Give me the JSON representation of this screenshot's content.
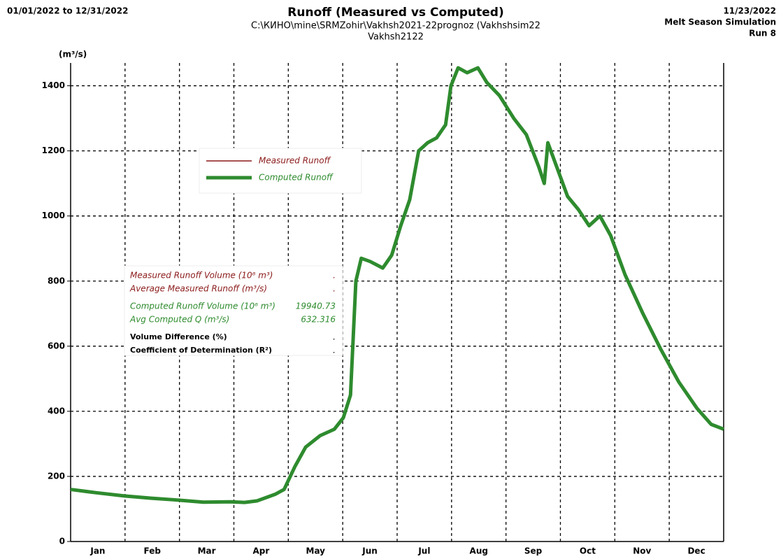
{
  "chart_data": {
    "type": "line",
    "title": "Runoff (Measured vs Computed)",
    "subtitle": "C:\\КИНО\\mine\\SRMZohir\\Vakhsh2021-22prognoz (Vakhshsim22",
    "subtitle2": "Vakhsh2122",
    "date_range": "01/01/2022 to 12/31/2022",
    "run_date": "11/23/2022",
    "simulation": "Melt Season Simulation",
    "run": "Run 8",
    "y_label": "(m³/s)",
    "categories": [
      "Jan",
      "Feb",
      "Mar",
      "Apr",
      "May",
      "Jun",
      "Jul",
      "Aug",
      "Sep",
      "Oct",
      "Nov",
      "Dec"
    ],
    "xlim": [
      1,
      365
    ],
    "ylim": [
      0,
      1470
    ],
    "yticks": [
      0,
      200,
      400,
      600,
      800,
      1000,
      1200,
      1400
    ],
    "grid": true,
    "series": [
      {
        "name": "Measured Runoff",
        "color": "#8b1a1a"
      },
      {
        "name": "Computed Runoff",
        "color": "#2e8b2e",
        "x": [
          1,
          15,
          31,
          46,
          59,
          75,
          90,
          98,
          105,
          115,
          120,
          126,
          132,
          140,
          148,
          153,
          157,
          160,
          163,
          168,
          175,
          180,
          185,
          190,
          195,
          200,
          205,
          210,
          213,
          217,
          222,
          228,
          233,
          240,
          248,
          255,
          262,
          265,
          267,
          272,
          278,
          284,
          290,
          296,
          302,
          310,
          320,
          330,
          340,
          350,
          358,
          365
        ],
        "values": [
          160,
          150,
          140,
          133,
          128,
          121,
          122,
          120,
          125,
          145,
          160,
          230,
          290,
          325,
          345,
          380,
          450,
          800,
          870,
          860,
          840,
          880,
          970,
          1050,
          1200,
          1225,
          1240,
          1280,
          1400,
          1455,
          1440,
          1455,
          1410,
          1370,
          1300,
          1250,
          1150,
          1100,
          1225,
          1150,
          1060,
          1020,
          970,
          1000,
          940,
          820,
          700,
          590,
          490,
          410,
          360,
          345
        ]
      }
    ],
    "stats": [
      {
        "label": "Measured Runoff Volume (10⁶ m³)",
        "value": ".",
        "color": "#8b1a1a"
      },
      {
        "label": "Average Measured Runoff  (m³/s)",
        "value": ".",
        "color": "#8b1a1a"
      },
      {
        "label": "Computed Runoff Volume (10⁶ m³)",
        "value": "19940.73",
        "color": "#2e8b2e"
      },
      {
        "label": "Avg Computed Q   (m³/s)",
        "value": "632.316",
        "color": "#2e8b2e"
      },
      {
        "label": "Volume Difference (%)",
        "value": ".",
        "color": "#000000"
      },
      {
        "label": "Coefficient of Determination (R²)",
        "value": ".",
        "color": "#000000"
      }
    ]
  }
}
